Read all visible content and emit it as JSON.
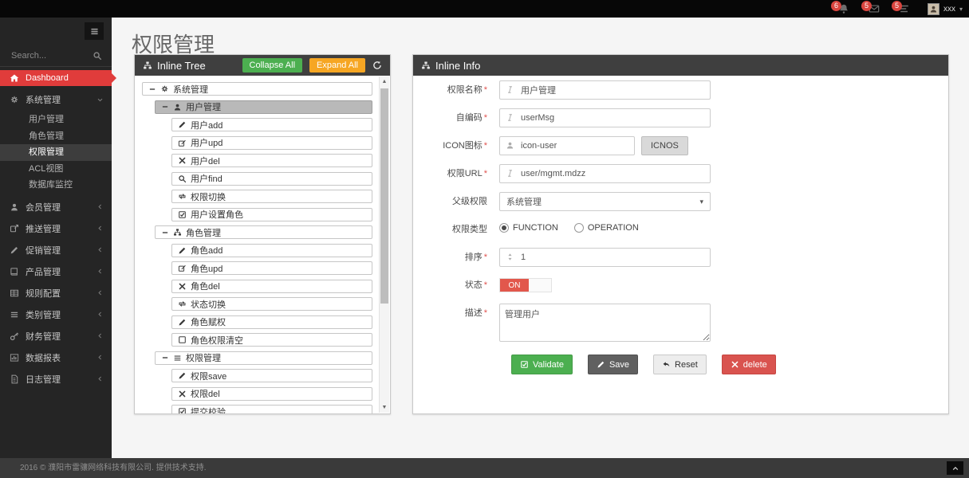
{
  "topbar": {
    "badges": [
      {
        "icon": "bell-icon",
        "count": "6"
      },
      {
        "icon": "envelope-icon",
        "count": "5"
      },
      {
        "icon": "tasks-icon",
        "count": "5"
      }
    ],
    "user": {
      "name": "xxx"
    }
  },
  "sidebar": {
    "search_placeholder": "Search...",
    "items": [
      {
        "label": "Dashboard",
        "icon": "home",
        "active": true
      },
      {
        "label": "系统管理",
        "icon": "gears",
        "chevron": "down",
        "children": [
          "用户管理",
          "角色管理",
          "权限管理",
          "ACL视图",
          "数据库监控"
        ],
        "active_child": "权限管理"
      },
      {
        "label": "会员管理",
        "icon": "user",
        "chevron": "left"
      },
      {
        "label": "推送管理",
        "icon": "share",
        "chevron": "left"
      },
      {
        "label": "促销管理",
        "icon": "pencil",
        "chevron": "left"
      },
      {
        "label": "产品管理",
        "icon": "book",
        "chevron": "left"
      },
      {
        "label": "规则配置",
        "icon": "table",
        "chevron": "left"
      },
      {
        "label": "类别管理",
        "icon": "list",
        "chevron": "left"
      },
      {
        "label": "财务管理",
        "icon": "key",
        "chevron": "left"
      },
      {
        "label": "数据报表",
        "icon": "chart",
        "chevron": "left"
      },
      {
        "label": "日志管理",
        "icon": "file",
        "chevron": "left"
      }
    ]
  },
  "page": {
    "title": "权限管理"
  },
  "tree_panel": {
    "title": "Inline Tree",
    "collapse_all": "Collapse All",
    "expand_all": "Expand All",
    "items": [
      {
        "level": 0,
        "icon": "gears",
        "label": "系统管理",
        "minus": true
      },
      {
        "level": 1,
        "icon": "user",
        "label": "用户管理",
        "minus": true,
        "selected": true
      },
      {
        "level": 2,
        "icon": "pencil",
        "label": "用户add"
      },
      {
        "level": 2,
        "icon": "edit",
        "label": "用户upd"
      },
      {
        "level": 2,
        "icon": "x",
        "label": "用户del"
      },
      {
        "level": 2,
        "icon": "search",
        "label": "用户find"
      },
      {
        "level": 2,
        "icon": "retweet",
        "label": "权限切换"
      },
      {
        "level": 2,
        "icon": "check-square",
        "label": "用户设置角色"
      },
      {
        "level": 1,
        "icon": "sitemap",
        "label": "角色管理",
        "minus": true
      },
      {
        "level": 2,
        "icon": "pencil",
        "label": "角色add"
      },
      {
        "level": 2,
        "icon": "edit",
        "label": "角色upd"
      },
      {
        "level": 2,
        "icon": "x",
        "label": "角色del"
      },
      {
        "level": 2,
        "icon": "retweet",
        "label": "状态切换"
      },
      {
        "level": 2,
        "icon": "pencil",
        "label": "角色赋权"
      },
      {
        "level": 2,
        "icon": "square",
        "label": "角色权限清空"
      },
      {
        "level": 1,
        "icon": "list",
        "label": "权限管理",
        "minus": true
      },
      {
        "level": 2,
        "icon": "pencil",
        "label": "权限save"
      },
      {
        "level": 2,
        "icon": "x",
        "label": "权限del"
      },
      {
        "level": 2,
        "icon": "check-square",
        "label": "提交校验"
      }
    ]
  },
  "info_panel": {
    "title": "Inline Info",
    "fields": [
      {
        "label": "权限名称",
        "required": true,
        "type": "text",
        "icon": "italic",
        "value": "用户管理"
      },
      {
        "label": "自编码",
        "required": true,
        "type": "text",
        "icon": "italic",
        "value": "userMsg"
      },
      {
        "label": "ICON图标",
        "required": true,
        "type": "text-button",
        "icon": "user",
        "value": "icon-user",
        "button": "ICNOS"
      },
      {
        "label": "权限URL",
        "required": true,
        "type": "text",
        "icon": "italic",
        "value": "user/mgmt.mdzz"
      },
      {
        "label": "父级权限",
        "required": false,
        "type": "select",
        "value": "系统管理"
      },
      {
        "label": "权限类型",
        "required": false,
        "type": "radio",
        "options": [
          {
            "label": "FUNCTION",
            "checked": true
          },
          {
            "label": "OPERATION",
            "checked": false
          }
        ]
      },
      {
        "label": "排序",
        "required": true,
        "type": "text",
        "icon": "sort",
        "value": "1"
      },
      {
        "label": "状态",
        "required": true,
        "type": "switch",
        "value": "ON"
      },
      {
        "label": "描述",
        "required": true,
        "type": "textarea",
        "value": "管理用户"
      }
    ],
    "buttons": [
      {
        "label": "Validate",
        "icon": "check-square",
        "style": "green"
      },
      {
        "label": "Save",
        "icon": "pencil",
        "style": "dark"
      },
      {
        "label": "Reset",
        "icon": "reply",
        "style": "light"
      },
      {
        "label": "delete",
        "icon": "x",
        "style": "red"
      }
    ]
  },
  "footer": {
    "text": "2016 © 濮阳市雷骧网络科技有限公司. 提供技术支持."
  },
  "colors": {
    "accent_green": "#4caf50",
    "accent_orange": "#f6a623",
    "accent_red": "#d9534f",
    "sidebar_active_red": "#e03c3b",
    "switch_on_red": "#e2574c"
  }
}
